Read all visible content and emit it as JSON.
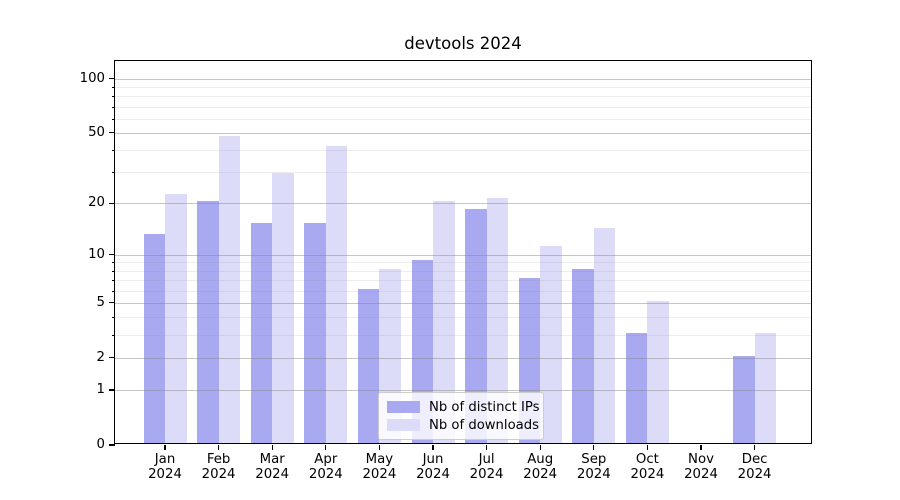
{
  "title": "devtools 2024",
  "chart_data": {
    "type": "bar",
    "title": "devtools 2024",
    "categories": [
      "Jan",
      "Feb",
      "Mar",
      "Apr",
      "May",
      "Jun",
      "Jul",
      "Aug",
      "Sep",
      "Oct",
      "Nov",
      "Dec"
    ],
    "year": "2024",
    "series": [
      {
        "name": "Nb of distinct IPs",
        "color": "#a9a9f2",
        "values": [
          13,
          20,
          15,
          15,
          6,
          9,
          18,
          7,
          8,
          3,
          0,
          2
        ]
      },
      {
        "name": "Nb of downloads",
        "color": "#dcdcf9",
        "values": [
          22,
          47,
          29,
          41,
          8,
          20,
          21,
          11,
          14,
          5,
          0,
          3
        ]
      }
    ],
    "yscale": "log1p",
    "ylim": [
      0,
      125
    ],
    "yticks": [
      0,
      1,
      2,
      5,
      10,
      20,
      50,
      100
    ],
    "minor_yticks": [
      3,
      4,
      6,
      7,
      8,
      9,
      30,
      40,
      60,
      70,
      80,
      90
    ],
    "grid": true,
    "legend_position": "lower center"
  }
}
